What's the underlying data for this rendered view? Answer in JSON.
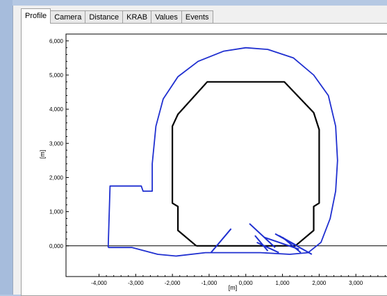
{
  "tabs": [
    {
      "label": "Profile",
      "active": true
    },
    {
      "label": "Camera",
      "active": false
    },
    {
      "label": "Distance",
      "active": false
    },
    {
      "label": "KRAB",
      "active": false
    },
    {
      "label": "Values",
      "active": false
    },
    {
      "label": "Events",
      "active": false
    }
  ],
  "chart_data": {
    "type": "scatter",
    "xlabel": "[m]",
    "ylabel": "[m]",
    "xlim": [
      -4.9,
      4.0
    ],
    "ylim": [
      -0.9,
      6.2
    ],
    "x_ticks": [
      -4.0,
      -3.0,
      -2.0,
      -1.0,
      0.0,
      1.0,
      2.0,
      3.0
    ],
    "x_tick_labels": [
      "-4,000",
      "-3,000",
      "-2,000",
      "-1,000",
      "0,000",
      "1,000",
      "2,000",
      "3,000"
    ],
    "y_ticks": [
      0.0,
      1.0,
      2.0,
      3.0,
      4.0,
      5.0,
      6.0
    ],
    "y_tick_labels": [
      "0,000",
      "1,000",
      "2,000",
      "3,000",
      "4,000",
      "5,000",
      "6,000"
    ],
    "grid": false,
    "baseline_y": 0.0,
    "series": [
      {
        "color": "#000000",
        "points": [
          [
            -1.35,
            0.0
          ],
          [
            -1.85,
            0.45
          ],
          [
            -1.85,
            1.15
          ],
          [
            -2.0,
            1.25
          ],
          [
            -2.0,
            3.5
          ],
          [
            -1.85,
            3.85
          ],
          [
            -1.05,
            4.8
          ],
          [
            1.05,
            4.8
          ],
          [
            1.85,
            3.9
          ],
          [
            2.0,
            3.4
          ],
          [
            2.0,
            1.25
          ],
          [
            1.85,
            1.15
          ],
          [
            1.85,
            0.45
          ],
          [
            1.35,
            0.0
          ],
          [
            -1.35,
            0.0
          ]
        ]
      },
      {
        "color": "#1f2fd0",
        "points": [
          [
            -3.75,
            -0.05
          ],
          [
            -3.7,
            1.75
          ],
          [
            -2.85,
            1.75
          ],
          [
            -2.8,
            1.6
          ],
          [
            -2.55,
            1.6
          ],
          [
            -2.55,
            2.4
          ],
          [
            -2.45,
            3.5
          ],
          [
            -2.25,
            4.3
          ],
          [
            -1.85,
            4.95
          ],
          [
            -1.3,
            5.4
          ],
          [
            -0.6,
            5.7
          ],
          [
            0.0,
            5.8
          ],
          [
            0.6,
            5.75
          ],
          [
            1.3,
            5.5
          ],
          [
            1.85,
            5.0
          ],
          [
            2.25,
            4.4
          ],
          [
            2.45,
            3.5
          ],
          [
            2.5,
            2.5
          ],
          [
            2.45,
            1.6
          ],
          [
            2.3,
            0.8
          ],
          [
            2.05,
            0.1
          ],
          [
            1.7,
            -0.2
          ],
          [
            1.2,
            -0.25
          ],
          [
            0.4,
            -0.2
          ],
          [
            -0.35,
            -0.2
          ],
          [
            -1.1,
            -0.2
          ],
          [
            -1.9,
            -0.3
          ],
          [
            -2.4,
            -0.25
          ],
          [
            -3.1,
            -0.05
          ],
          [
            -3.75,
            -0.05
          ]
        ]
      }
    ],
    "blue_segments": [
      [
        [
          -0.95,
          -0.2
        ],
        [
          -0.4,
          0.5
        ]
      ],
      [
        [
          0.1,
          0.65
        ],
        [
          0.8,
          -0.05
        ]
      ],
      [
        [
          0.25,
          0.3
        ],
        [
          0.6,
          -0.15
        ]
      ],
      [
        [
          0.5,
          0.25
        ],
        [
          1.45,
          -0.1
        ]
      ],
      [
        [
          0.8,
          0.35
        ],
        [
          1.8,
          -0.25
        ]
      ],
      [
        [
          0.9,
          0.3
        ],
        [
          1.4,
          0.0
        ]
      ],
      [
        [
          1.0,
          0.25
        ],
        [
          1.5,
          -0.2
        ]
      ],
      [
        [
          0.3,
          0.1
        ],
        [
          0.9,
          -0.2
        ]
      ]
    ]
  }
}
